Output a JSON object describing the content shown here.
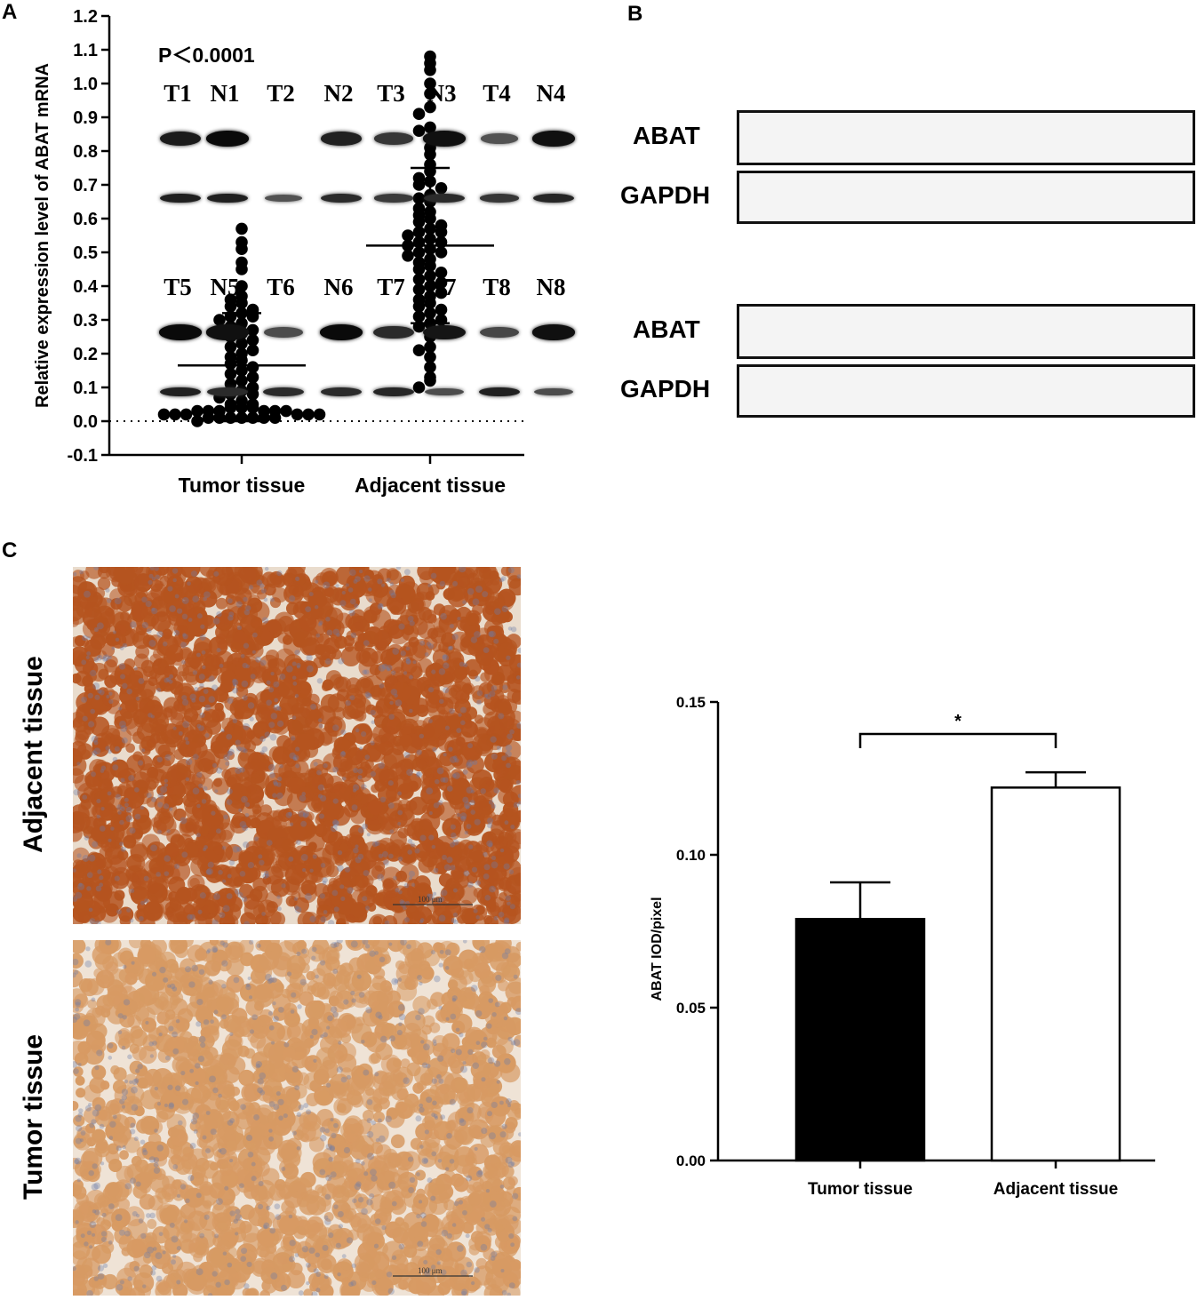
{
  "panels": {
    "a": {
      "label": "A"
    },
    "b": {
      "label": "B"
    },
    "c": {
      "label": "C"
    }
  },
  "chart_data": [
    {
      "type": "scatter",
      "panel": "A",
      "ylabel": "Relative expression level of ABAT mRNA",
      "xlabel": "",
      "annotation": "P＜0.0001",
      "categories": [
        "Tumor tissue",
        "Adjacent tissue"
      ],
      "ylim": [
        -0.1,
        1.2
      ],
      "yticks": [
        "-0.1",
        "0.0",
        "0.1",
        "0.2",
        "0.3",
        "0.4",
        "0.5",
        "0.6",
        "0.7",
        "0.8",
        "0.9",
        "1.0",
        "1.1",
        "1.2"
      ],
      "baseline": 0.0,
      "series": [
        {
          "category": "Tumor tissue",
          "mean": 0.165,
          "sd_upper": 0.32,
          "sd_lower": 0.0,
          "values": [
            0.57,
            0.53,
            0.51,
            0.47,
            0.45,
            0.4,
            0.37,
            0.36,
            0.35,
            0.34,
            0.33,
            0.32,
            0.31,
            0.31,
            0.3,
            0.29,
            0.28,
            0.27,
            0.26,
            0.25,
            0.24,
            0.23,
            0.22,
            0.21,
            0.2,
            0.19,
            0.18,
            0.17,
            0.16,
            0.15,
            0.14,
            0.13,
            0.12,
            0.11,
            0.1,
            0.09,
            0.08,
            0.08,
            0.07,
            0.06,
            0.05,
            0.05,
            0.04,
            0.04,
            0.04,
            0.03,
            0.03,
            0.03,
            0.03,
            0.03,
            0.03,
            0.02,
            0.02,
            0.02,
            0.02,
            0.02,
            0.02,
            0.01,
            0.01,
            0.01,
            0.01,
            0.01,
            0.01,
            0.01,
            0.0
          ]
        },
        {
          "category": "Adjacent tissue",
          "mean": 0.52,
          "sd_upper": 0.75,
          "sd_lower": 0.29,
          "values": [
            1.08,
            1.06,
            1.04,
            1.0,
            0.97,
            0.93,
            0.91,
            0.87,
            0.86,
            0.81,
            0.79,
            0.76,
            0.74,
            0.72,
            0.71,
            0.7,
            0.69,
            0.67,
            0.66,
            0.65,
            0.63,
            0.62,
            0.61,
            0.6,
            0.59,
            0.58,
            0.57,
            0.56,
            0.56,
            0.55,
            0.54,
            0.53,
            0.53,
            0.52,
            0.51,
            0.5,
            0.5,
            0.49,
            0.48,
            0.47,
            0.46,
            0.45,
            0.44,
            0.43,
            0.42,
            0.41,
            0.4,
            0.39,
            0.38,
            0.37,
            0.36,
            0.35,
            0.34,
            0.33,
            0.32,
            0.31,
            0.3,
            0.29,
            0.28,
            0.25,
            0.22,
            0.21,
            0.19,
            0.16,
            0.13,
            0.12,
            0.1
          ]
        }
      ]
    },
    {
      "type": "bar",
      "panel": "C",
      "ylabel": "ABAT IOD/pixel",
      "xlabel": "",
      "categories": [
        "Tumor tissue",
        "Adjacent tissue"
      ],
      "values": [
        0.079,
        0.122
      ],
      "errors": [
        0.012,
        0.005
      ],
      "colors": [
        "#000000",
        "#ffffff"
      ],
      "ylim": [
        0.0,
        0.15
      ],
      "yticks": [
        "0.00",
        "0.05",
        "0.10",
        "0.15"
      ],
      "significance": "*"
    }
  ],
  "blot": {
    "groups": [
      {
        "lanes": [
          "T1",
          "N1",
          "T2",
          "N2",
          "T3",
          "N3",
          "T4",
          "N4"
        ],
        "abat_intensity": [
          0.85,
          1.0,
          0.0,
          0.8,
          0.6,
          0.95,
          0.35,
          0.95
        ],
        "gapdh_intensity": [
          0.8,
          0.8,
          0.35,
          0.7,
          0.55,
          0.7,
          0.6,
          0.75
        ]
      },
      {
        "lanes": [
          "T5",
          "N5",
          "T6",
          "N6",
          "T7",
          "N7",
          "T8",
          "N8"
        ],
        "abat_intensity": [
          1.0,
          0.95,
          0.4,
          1.0,
          0.7,
          0.9,
          0.45,
          0.95
        ],
        "gapdh_intensity": [
          0.8,
          0.7,
          0.7,
          0.7,
          0.75,
          0.4,
          0.8,
          0.4
        ]
      }
    ],
    "row_labels": {
      "abat": "ABAT",
      "gapdh": "GAPDH"
    }
  },
  "ihc": {
    "top_label": "Adjacent  tissue",
    "bottom_label": "Tumor tissue",
    "scale_text": "100 μm",
    "top_color": "#b5541f",
    "bottom_color": "#d79a63"
  }
}
